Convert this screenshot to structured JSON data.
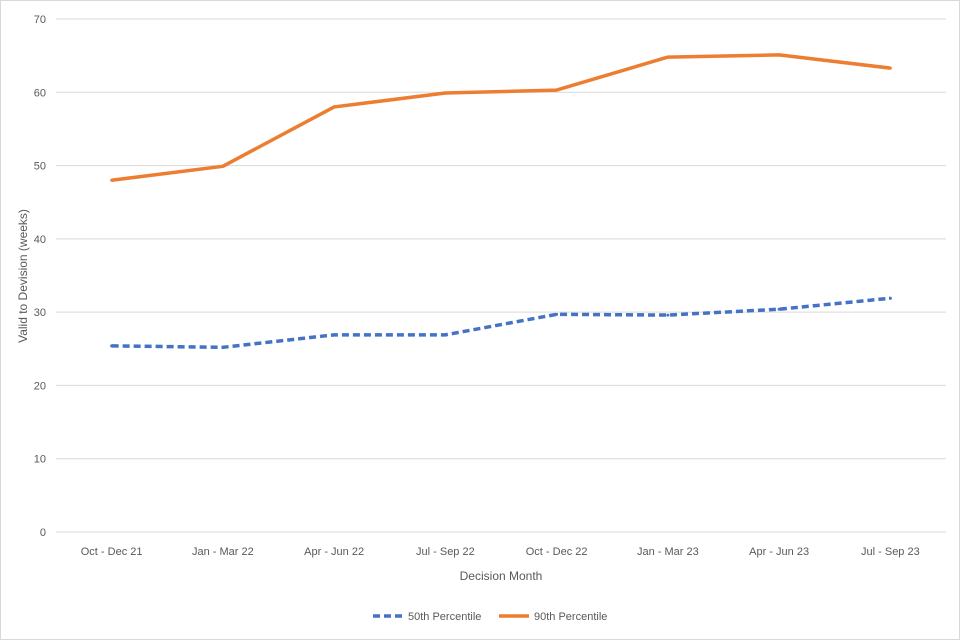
{
  "chart_data": {
    "type": "line",
    "title": "",
    "xlabel": "Decision Month",
    "ylabel": "Valid to Devision (weeks)",
    "ylim": [
      0,
      70
    ],
    "yticks": [
      0,
      10,
      20,
      30,
      40,
      50,
      60,
      70
    ],
    "grid": true,
    "legend_position": "bottom",
    "categories": [
      "Oct - Dec 21",
      "Jan - Mar 22",
      "Apr - Jun 22",
      "Jul - Sep 22",
      "Oct - Dec 22",
      "Jan - Mar 23",
      "Apr - Jun 23",
      "Jul - Sep 23"
    ],
    "series": [
      {
        "name": "50th Percentile",
        "color": "#4472C4",
        "dash": true,
        "values": [
          25.4,
          25.2,
          26.9,
          26.9,
          29.7,
          29.6,
          30.4,
          31.9
        ]
      },
      {
        "name": "90th Percentile",
        "color": "#ED7D31",
        "dash": false,
        "values": [
          48.0,
          49.9,
          58.0,
          59.9,
          60.3,
          64.8,
          65.1,
          63.3
        ]
      }
    ]
  }
}
